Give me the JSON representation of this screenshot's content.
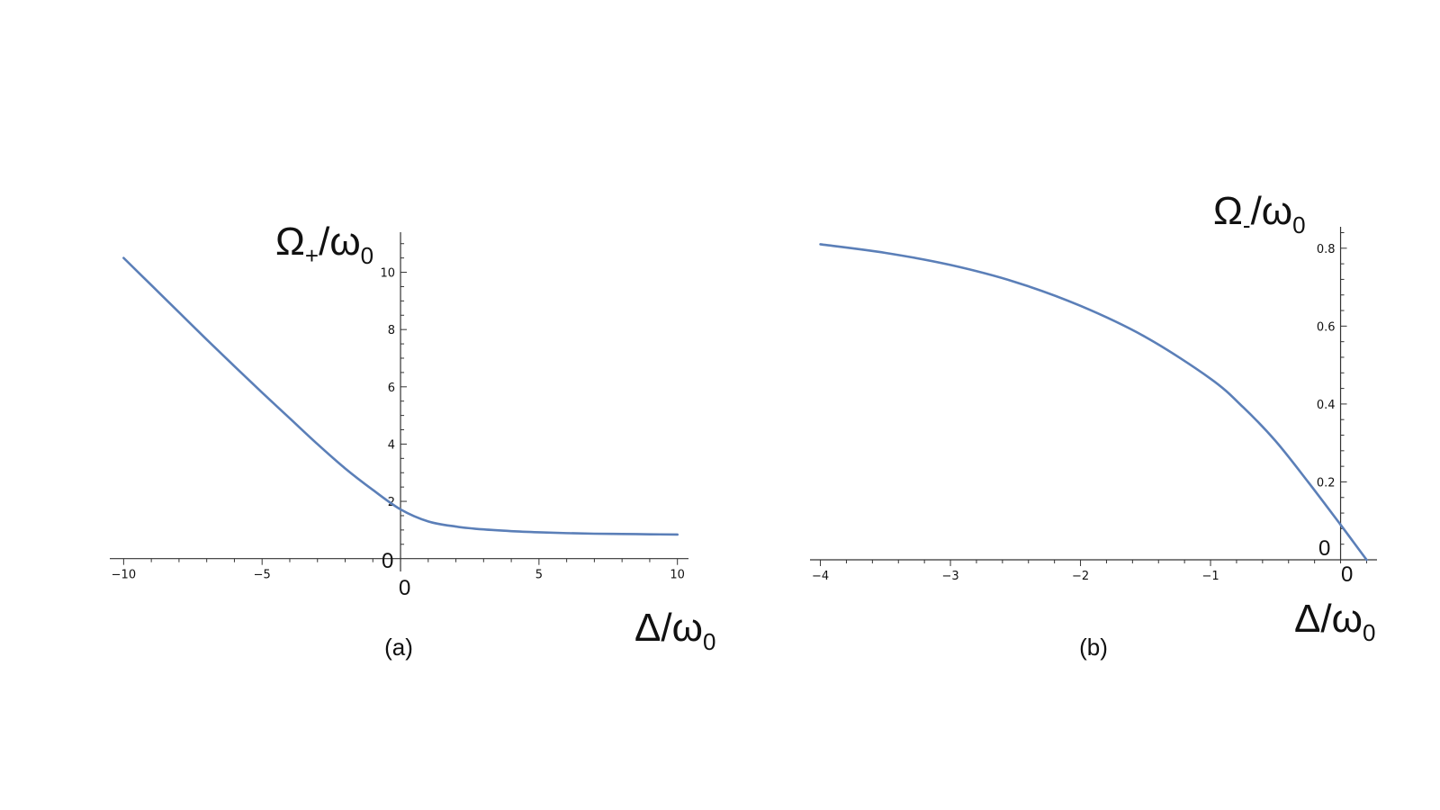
{
  "colors": {
    "curve": "#5b7fb8",
    "axis": "#333333"
  },
  "chart_data": [
    {
      "type": "line",
      "caption": "(a)",
      "ylabel": {
        "main": "Ω",
        "sub": "+",
        "rest": "/ω",
        "sub2": "0"
      },
      "xlabel": {
        "main": "Δ/ω",
        "sub": "0"
      },
      "origin_x_label": "0",
      "origin_y_label": "0",
      "xlim": [
        -10.5,
        10.4
      ],
      "ylim": [
        -0.45,
        11.4
      ],
      "x_ticks": [
        -10,
        -5,
        5,
        10
      ],
      "x_tick_labels": [
        "−10",
        "−5",
        "5",
        "10"
      ],
      "y_ticks": [
        2,
        4,
        6,
        8,
        10
      ],
      "y_tick_labels": [
        "2",
        "4",
        "6",
        "8",
        "10"
      ],
      "series": [
        {
          "x": [
            -10,
            -9,
            -8,
            -7,
            -6,
            -5,
            -4,
            -3,
            -2,
            -1,
            0,
            1,
            2,
            3,
            4,
            5,
            6,
            7,
            8,
            9,
            10
          ],
          "y": [
            10.5,
            9.55,
            8.6,
            7.65,
            6.72,
            5.8,
            4.9,
            4.0,
            3.15,
            2.4,
            1.72,
            1.3,
            1.12,
            1.02,
            0.96,
            0.92,
            0.89,
            0.87,
            0.86,
            0.85,
            0.84
          ]
        }
      ]
    },
    {
      "type": "line",
      "caption": "(b)",
      "ylabel": {
        "main": "Ω",
        "sub": "-",
        "rest": "/ω",
        "sub2": "0"
      },
      "xlabel": {
        "main": "Δ/ω",
        "sub": "0"
      },
      "origin_x_label": "0",
      "origin_y_label": "0",
      "xlim": [
        -4.08,
        0.28
      ],
      "ylim": [
        0,
        0.855
      ],
      "x_ticks": [
        -4,
        -3,
        -2,
        -1
      ],
      "x_tick_labels": [
        "−4",
        "−3",
        "−2",
        "−1"
      ],
      "y_ticks": [
        0.2,
        0.4,
        0.6,
        0.8
      ],
      "y_tick_labels": [
        "0.2",
        "0.4",
        "0.6",
        "0.8"
      ],
      "series": [
        {
          "x": [
            -4,
            -3.5,
            -3,
            -2.5,
            -2,
            -1.5,
            -1,
            -0.75,
            -0.5,
            -0.25,
            0,
            0.1,
            0.2
          ],
          "y": [
            0.81,
            0.788,
            0.757,
            0.713,
            0.652,
            0.572,
            0.465,
            0.392,
            0.305,
            0.2,
            0.09,
            0.045,
            0.0
          ]
        }
      ]
    }
  ]
}
